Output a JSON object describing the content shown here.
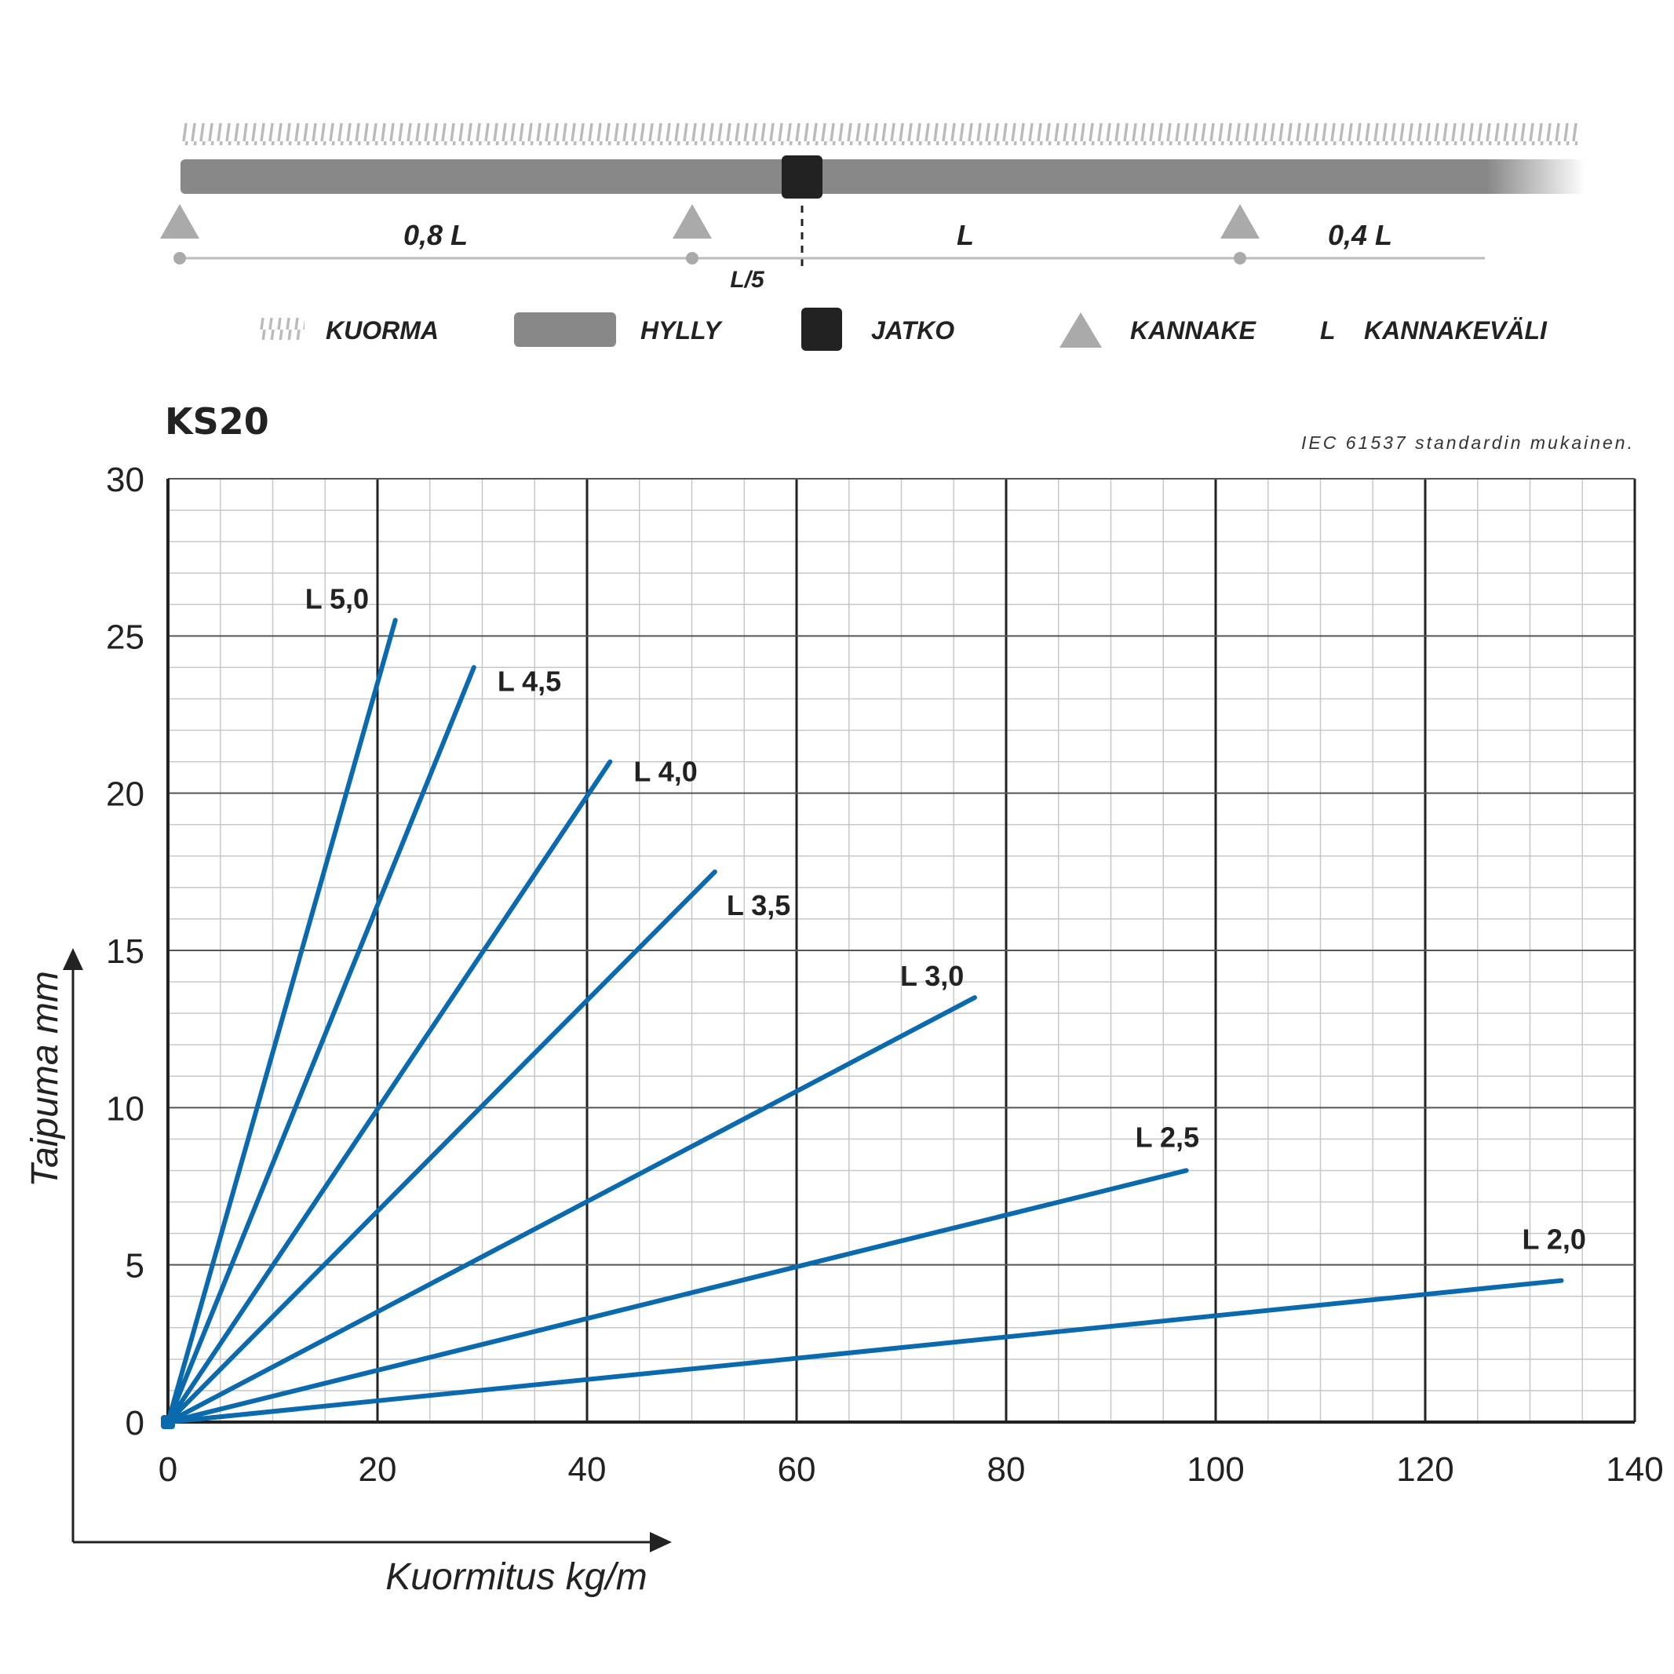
{
  "diagram": {
    "span_labels": [
      "0,8 L",
      "L",
      "0,4 L"
    ],
    "joint_offset_label": "L/5",
    "colors": {
      "shelf": "#888888",
      "joint": "#222222",
      "bracket": "#aaaaaa",
      "load": "#bbbbbb"
    }
  },
  "legend": {
    "items": [
      {
        "icon": "load-hatch-icon",
        "label": "KUORMA"
      },
      {
        "icon": "shelf-bar-icon",
        "label": "HYLLY"
      },
      {
        "icon": "joint-square-icon",
        "label": "JATKO"
      },
      {
        "icon": "bracket-triangle-icon",
        "label": "KANNAKE"
      },
      {
        "symbol": "L",
        "label": "KANNAKEVÄLI"
      }
    ]
  },
  "header": {
    "title": "KS20",
    "note": "IEC 61537 standardin mukainen."
  },
  "chart_data": {
    "type": "line",
    "title": "KS20",
    "xlabel": "Kuormitus kg/m",
    "ylabel": "Taipuma mm",
    "xlim": [
      0,
      140
    ],
    "ylim": [
      0,
      30
    ],
    "xticks": [
      0,
      20,
      40,
      60,
      80,
      100,
      120,
      140
    ],
    "yticks": [
      0,
      5,
      10,
      15,
      20,
      25,
      30
    ],
    "grid": true,
    "line_color": "#0a6aad",
    "series": [
      {
        "name": "L 5,0",
        "x": [
          0,
          21.7
        ],
        "y": [
          0,
          25.5
        ]
      },
      {
        "name": "L 4,5",
        "x": [
          0,
          29.2
        ],
        "y": [
          0,
          24.0
        ]
      },
      {
        "name": "L 4,0",
        "x": [
          0,
          42.2
        ],
        "y": [
          0,
          21.0
        ]
      },
      {
        "name": "L 3,5",
        "x": [
          0,
          52.2
        ],
        "y": [
          0,
          17.5
        ]
      },
      {
        "name": "L 3,0",
        "x": [
          0,
          77.0
        ],
        "y": [
          0,
          13.5
        ]
      },
      {
        "name": "L 2,5",
        "x": [
          0,
          97.2
        ],
        "y": [
          0,
          8.0
        ]
      },
      {
        "name": "L 2,0",
        "x": [
          0,
          133.0
        ],
        "y": [
          0,
          4.5
        ]
      }
    ]
  }
}
